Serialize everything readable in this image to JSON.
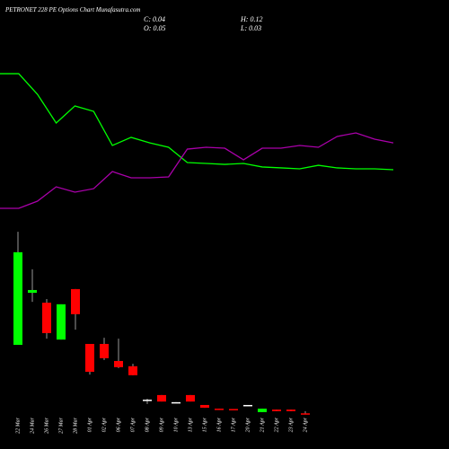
{
  "chart_data": [
    {
      "type": "candlestick",
      "title": "PETRONET 228 PE Options Chart Munafasutra.com",
      "ohlc_labels": [
        "C: 0.04",
        "H: 0.12",
        "O: 0.05",
        "L: 0.03"
      ],
      "categories": [
        "22 Mar",
        "24 Mar",
        "26 Mar",
        "27 Mar",
        "28 Mar",
        "01 Apr",
        "02 Apr",
        "06 Apr",
        "07 Apr",
        "08 Apr",
        "09 Apr",
        "10 Apr",
        "13 Apr",
        "15 Apr",
        "16 Apr",
        "17 Apr",
        "20 Apr",
        "21 Apr",
        "22 Apr",
        "23 Apr",
        "24 Apr"
      ],
      "open": [
        2.26,
        3.94,
        3.62,
        2.43,
        4.06,
        2.29,
        2.29,
        1.74,
        1.57,
        0.49,
        0.64,
        0.41,
        0.64,
        0.32,
        0.2,
        0.19,
        0.32,
        0.09,
        0.17,
        0.17,
        0.05
      ],
      "high": [
        5.91,
        4.7,
        3.74,
        3.57,
        4.06,
        2.29,
        2.49,
        2.46,
        1.65,
        0.52,
        0.64,
        0.41,
        0.64,
        0.32,
        0.2,
        0.19,
        0.32,
        0.2,
        0.17,
        0.17,
        0.12
      ],
      "low": [
        2.26,
        3.65,
        2.46,
        2.43,
        2.75,
        1.3,
        1.77,
        1.51,
        1.28,
        0.35,
        0.43,
        0.38,
        0.43,
        0.23,
        0.17,
        0.16,
        0.32,
        0.09,
        0.12,
        0.12,
        0.03
      ],
      "close": [
        5.25,
        4.03,
        2.64,
        3.57,
        3.25,
        1.39,
        1.83,
        1.54,
        1.28,
        0.49,
        0.43,
        0.41,
        0.43,
        0.23,
        0.17,
        0.16,
        0.32,
        0.2,
        0.12,
        0.12,
        0.04
      ],
      "ylim": [
        0,
        6
      ],
      "up_color": "#00ff00",
      "down_color": "#ff0000",
      "flat_color": "#ffffff"
    },
    {
      "type": "line",
      "series": [
        {
          "color": "#00ff00",
          "values": [
            92.9,
            92.9,
            79.4,
            60.6,
            71.8,
            68.2,
            45.9,
            51.2,
            47.6,
            44.7,
            34.7,
            34.1,
            33.5,
            34.1,
            31.8,
            31.2,
            30.6,
            32.9,
            31.2,
            30.6,
            30.6,
            30.0
          ]
        },
        {
          "color": "#aa00aa",
          "values": [
            4.7,
            4.7,
            9.4,
            18.8,
            15.3,
            17.6,
            28.8,
            24.7,
            24.7,
            25.3,
            43.5,
            44.7,
            44.1,
            36.5,
            44.1,
            44.1,
            45.9,
            44.7,
            51.8,
            54.1,
            50.0,
            47.6
          ]
        }
      ],
      "ylim": [
        0,
        100
      ]
    }
  ]
}
